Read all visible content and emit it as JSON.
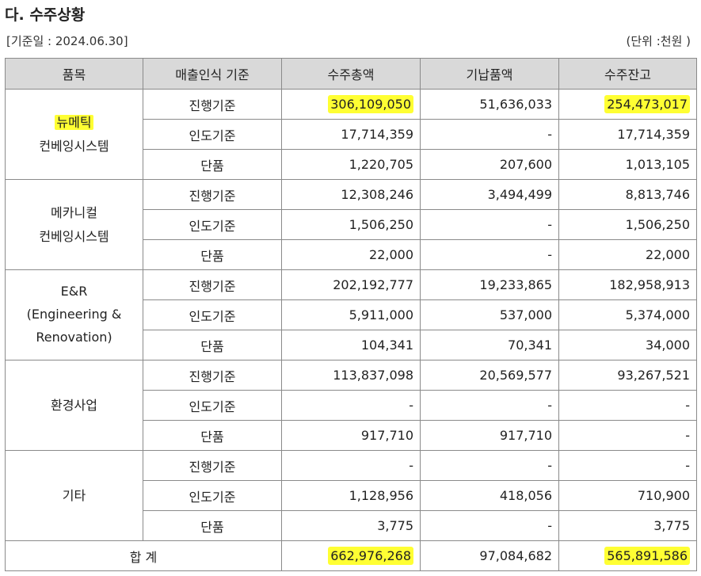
{
  "title": "다. 수주상황",
  "basis_date": "[기준일 : 2024.06.30]",
  "unit": "(단위 :천원 )",
  "headers": [
    "품목",
    "매출인식 기준",
    "수주총액",
    "기납품액",
    "수주잔고"
  ],
  "groups": [
    {
      "product": [
        "뉴메틱",
        "컨베잉시스템"
      ],
      "rows": [
        {
          "basis": "진행기준",
          "total": "306,109,050",
          "delivered": "51,636,033",
          "backlog": "254,473,017"
        },
        {
          "basis": "인도기준",
          "total": "17,714,359",
          "delivered": "-",
          "backlog": "17,714,359"
        },
        {
          "basis": "단품",
          "total": "1,220,705",
          "delivered": "207,600",
          "backlog": "1,013,105"
        }
      ]
    },
    {
      "product": [
        "메카니컬",
        "컨베잉시스템"
      ],
      "rows": [
        {
          "basis": "진행기준",
          "total": "12,308,246",
          "delivered": "3,494,499",
          "backlog": "8,813,746"
        },
        {
          "basis": "인도기준",
          "total": "1,506,250",
          "delivered": "-",
          "backlog": "1,506,250"
        },
        {
          "basis": "단품",
          "total": "22,000",
          "delivered": "-",
          "backlog": "22,000"
        }
      ]
    },
    {
      "product": [
        "E&R",
        "(Engineering &",
        "Renovation)"
      ],
      "rows": [
        {
          "basis": "진행기준",
          "total": "202,192,777",
          "delivered": "19,233,865",
          "backlog": "182,958,913"
        },
        {
          "basis": "인도기준",
          "total": "5,911,000",
          "delivered": "537,000",
          "backlog": "5,374,000"
        },
        {
          "basis": "단품",
          "total": "104,341",
          "delivered": "70,341",
          "backlog": "34,000"
        }
      ]
    },
    {
      "product": [
        "환경사업"
      ],
      "rows": [
        {
          "basis": "진행기준",
          "total": "113,837,098",
          "delivered": "20,569,577",
          "backlog": "93,267,521"
        },
        {
          "basis": "인도기준",
          "total": "-",
          "delivered": "-",
          "backlog": "-"
        },
        {
          "basis": "단품",
          "total": "917,710",
          "delivered": "917,710",
          "backlog": "-"
        }
      ]
    },
    {
      "product": [
        "기타"
      ],
      "rows": [
        {
          "basis": "진행기준",
          "total": "-",
          "delivered": "-",
          "backlog": "-"
        },
        {
          "basis": "인도기준",
          "total": "1,128,956",
          "delivered": "418,056",
          "backlog": "710,900"
        },
        {
          "basis": "단품",
          "total": "3,775",
          "delivered": "-",
          "backlog": "3,775"
        }
      ]
    }
  ],
  "total_row": {
    "label": "합 계",
    "total": "662,976,268",
    "delivered": "97,084,682",
    "backlog": "565,891,586"
  },
  "highlight_color": "#ffff33"
}
